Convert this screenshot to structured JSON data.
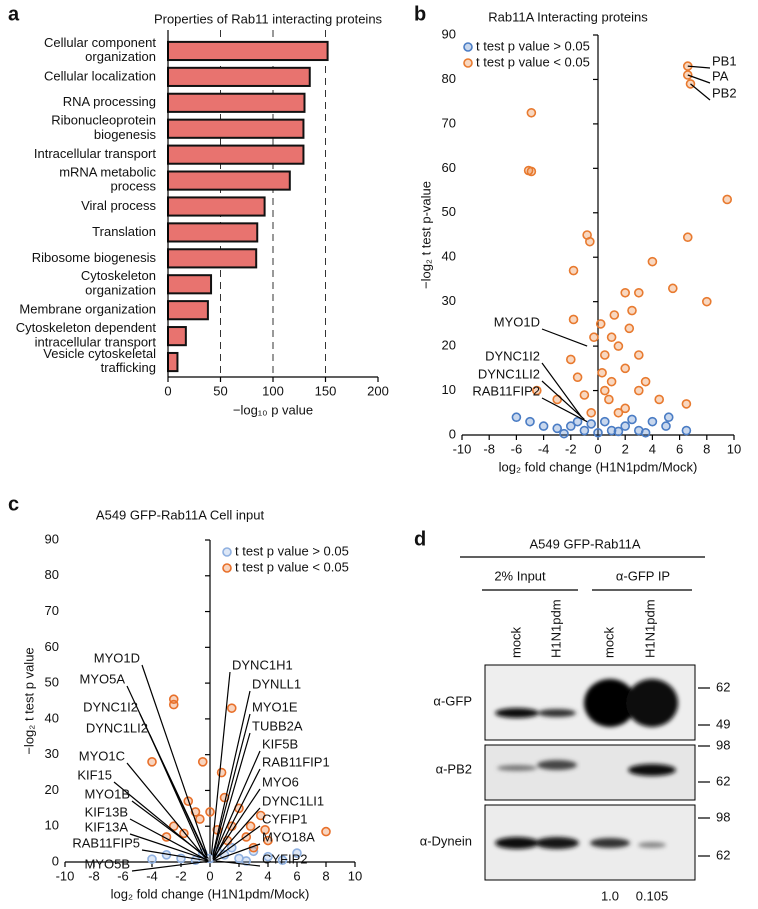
{
  "chart_data": [
    {
      "type": "bar",
      "orientation": "horizontal",
      "label": "a",
      "title": "Properties of Rab11 interacting proteins",
      "categories": [
        "Cellular component\norganization",
        "Cellular localization",
        "RNA processing",
        "Ribonucleoprotein\nbiogenesis",
        "Intracellular transport",
        "mRNA metabolic\nprocess",
        "Viral process",
        "Translation",
        "Ribosome biogenesis",
        "Cytoskeleton\norganization",
        "Membrane organization",
        "Cytoskeleton dependent\nintracellular transport",
        "Vesicle cytoskeletal\ntrafficking"
      ],
      "values": [
        152,
        135,
        130,
        129,
        129,
        116,
        92,
        85,
        84,
        41,
        38,
        17,
        9
      ],
      "color": "#e8736f",
      "xlim": [
        0,
        200
      ],
      "xticks": [
        0,
        50,
        100,
        150,
        200
      ],
      "grid": true,
      "x_label": "−log₁₀ p value"
    },
    {
      "type": "scatter",
      "label": "b",
      "title": "Rab11A Interacting proteins",
      "x_label": "log₂ fold change (H1N1pdm/Mock)",
      "y_label": "−log₂ t test p-value",
      "xlim": [
        -10,
        10
      ],
      "xticks": [
        -10,
        -8,
        -6,
        -4,
        -2,
        0,
        2,
        4,
        6,
        8,
        10
      ],
      "ylim": [
        0,
        90
      ],
      "yticks": [
        0,
        10,
        20,
        30,
        40,
        50,
        60,
        70,
        80,
        90
      ],
      "legend": "upper left",
      "series": [
        {
          "name": "t test p value > 0.05",
          "color": "#4a7cc4",
          "x": [
            -6,
            -5,
            -4,
            -3,
            -2,
            -1,
            0,
            1,
            2,
            3,
            4,
            5,
            6.5,
            -1.5,
            0.5,
            1.5,
            -0.5,
            2.5,
            3.5,
            -2.5,
            5.2
          ],
          "values": [
            4,
            3,
            2,
            1.5,
            2,
            1,
            0.5,
            1,
            2,
            1,
            3,
            2,
            1,
            3,
            3,
            0.8,
            2.5,
            3.5,
            0.5,
            0.3,
            4
          ]
        },
        {
          "name": "t test p value < 0.05",
          "color": "#e87a2f",
          "x": [
            6.6,
            6.6,
            6.8,
            -4.9,
            -5.1,
            -4.9,
            9.5,
            6.6,
            -0.8,
            -0.6,
            4,
            -1.8,
            8,
            5.5,
            2,
            -1.8,
            3,
            1,
            2.5,
            -0.3,
            0.5,
            1.5,
            3,
            -2,
            2,
            1,
            0.5,
            -1,
            0.8,
            -3,
            -4.5,
            3.5,
            4.5,
            2,
            1.5,
            -0.5,
            0.3,
            0.2,
            1.2,
            2.3,
            -1.5,
            3,
            6.5
          ],
          "values": [
            83,
            81,
            79,
            72.5,
            59.5,
            59.3,
            53,
            44.5,
            45,
            43.5,
            39,
            37,
            30,
            33,
            32,
            26,
            32,
            22,
            28,
            22,
            18,
            20,
            18,
            17,
            15,
            12,
            10,
            9,
            8,
            8,
            10,
            12,
            8,
            6,
            5,
            5,
            14,
            25,
            27,
            24,
            13,
            10,
            7
          ]
        }
      ],
      "annotations": [
        {
          "text": "PB1",
          "x": 6.6,
          "y": 83
        },
        {
          "text": "PA",
          "x": 6.6,
          "y": 81
        },
        {
          "text": "PB2",
          "x": 6.8,
          "y": 79
        },
        {
          "text": "MYO1D",
          "x": -0.8,
          "y": 20
        },
        {
          "text": "DYNC1I2",
          "x": -1.2,
          "y": 4
        },
        {
          "text": "DYNC1LI2",
          "x": -1.0,
          "y": 3.5
        },
        {
          "text": "RAB11FIP2",
          "x": -0.8,
          "y": 3
        }
      ]
    },
    {
      "type": "scatter",
      "label": "c",
      "title": "A549 GFP-Rab11A Cell input",
      "x_label": "log₂ fold change (H1N1pdm/Mock)",
      "y_label": "−log₂ t test p value",
      "xlim": [
        -10,
        10
      ],
      "xticks": [
        -10,
        -8,
        -6,
        -4,
        -2,
        0,
        2,
        4,
        6,
        8,
        10
      ],
      "ylim": [
        0,
        90
      ],
      "yticks": [
        0,
        10,
        20,
        30,
        40,
        50,
        60,
        70,
        80,
        90
      ],
      "legend": "upper right",
      "series": [
        {
          "name": "t test p value > 0.05",
          "color": "#8fb0e0",
          "x": [
            -3,
            -2,
            -1,
            0,
            1,
            2,
            3,
            4,
            5,
            6,
            -4,
            0.5,
            -0.5,
            1.5,
            2.5
          ],
          "values": [
            2,
            1,
            0.5,
            1,
            2,
            1,
            3,
            1.5,
            0.5,
            2.5,
            0.8,
            3,
            2.5,
            4,
            0.3
          ]
        },
        {
          "name": "t test p value < 0.05",
          "color": "#e8702a",
          "x": [
            -2.5,
            -2.5,
            1.5,
            -4,
            -0.5,
            0.8,
            8,
            3.5,
            -1.5,
            2,
            1,
            -1,
            0,
            2.8,
            3.8,
            -2.5,
            -3,
            -1.8,
            1.5,
            0.5,
            2.5,
            -0.7,
            1.2,
            3,
            4
          ],
          "values": [
            45.5,
            44,
            43,
            28,
            28,
            25,
            8.5,
            13,
            17,
            15,
            18,
            14,
            14,
            10,
            9,
            10,
            7,
            8,
            10,
            9,
            7,
            12,
            6,
            4,
            6
          ]
        }
      ],
      "annotations": [
        {
          "text": "MYO1D",
          "x": -0.2,
          "y": 2
        },
        {
          "text": "MYO5A",
          "x": -0.3,
          "y": 2
        },
        {
          "text": "DYNC1I2",
          "x": -0.2,
          "y": 1.5
        },
        {
          "text": "DYNC1LI2",
          "x": -0.4,
          "y": 1.5
        },
        {
          "text": "MYO1C",
          "x": -0.3,
          "y": 1
        },
        {
          "text": "KIF15",
          "x": -0.2,
          "y": 1
        },
        {
          "text": "MYO1B",
          "x": -0.1,
          "y": 1
        },
        {
          "text": "KIF13B",
          "x": -0.2,
          "y": 0.5
        },
        {
          "text": "KIF13A",
          "x": -0.1,
          "y": 0.5
        },
        {
          "text": "RAB11FIP5",
          "x": -0.1,
          "y": 0.3
        },
        {
          "text": "MYO5B",
          "x": -0.1,
          "y": 0.2
        },
        {
          "text": "DYNC1H1",
          "x": 0.1,
          "y": 2
        },
        {
          "text": "DYNLL1",
          "x": 0.2,
          "y": 2
        },
        {
          "text": "MYO1E",
          "x": 0.2,
          "y": 1.5
        },
        {
          "text": "TUBB2A",
          "x": 0.3,
          "y": 1.5
        },
        {
          "text": "KIF5B",
          "x": 0.2,
          "y": 1
        },
        {
          "text": "RAB11FIP1",
          "x": 0.3,
          "y": 1
        },
        {
          "text": "MYO6",
          "x": 0.2,
          "y": 0.8
        },
        {
          "text": "DYNC1LI1",
          "x": 0.3,
          "y": 0.6
        },
        {
          "text": "CYFIP1",
          "x": 0.2,
          "y": 0.5
        },
        {
          "text": "MYO18A",
          "x": 0.3,
          "y": 0.4
        },
        {
          "text": "CYFIP2",
          "x": 0.4,
          "y": 0.3
        }
      ]
    }
  ],
  "blot": {
    "label": "d",
    "title": "A549 GFP-Rab11A",
    "groups": [
      "2% Input",
      "α-GFP IP"
    ],
    "lanes": [
      "mock",
      "H1N1pdm",
      "mock",
      "H1N1pdm"
    ],
    "rows": [
      {
        "antibody": "α-GFP",
        "markers": [
          62,
          49
        ]
      },
      {
        "antibody": "α-PB2",
        "markers": [
          98,
          62
        ]
      },
      {
        "antibody": "α-Dynein",
        "markers": [
          98,
          62
        ]
      }
    ],
    "quantification": [
      "1.0",
      "0.105"
    ]
  }
}
